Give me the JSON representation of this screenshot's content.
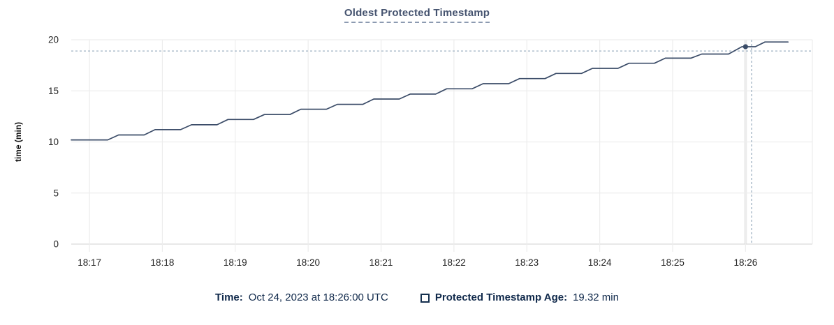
{
  "title": "Oldest Protected Timestamp",
  "legend": {
    "time_label": "Time:",
    "time_value": "Oct 24, 2023 at 18:26:00 UTC",
    "series_label": "Protected Timestamp Age:",
    "series_value": "19.32 min",
    "series_swatch_icon": "checkbox-square-icon"
  },
  "colors": {
    "title": "#45536f",
    "title_underline": "#8c9ab1",
    "line": "#3b4c68",
    "dot": "#3b4c68",
    "crosshair": "#9fb2c3",
    "grid": "#ededed",
    "axis_baseline": "#d9d9d9",
    "hover_guideline": "#ebebeb",
    "tick_text": "#242424",
    "axis_title_text": "#111111",
    "legend_text": "#10294b"
  },
  "chart_data": {
    "type": "line",
    "title": "Oldest Protected Timestamp",
    "xlabel": "",
    "ylabel": "time (min)",
    "ylim": [
      0,
      20
    ],
    "yticks": [
      0,
      5,
      10,
      15,
      20
    ],
    "xticks": [
      "18:17",
      "18:18",
      "18:19",
      "18:20",
      "18:21",
      "18:22",
      "18:23",
      "18:24",
      "18:25",
      "18:26"
    ],
    "x_range": [
      "18:16:45",
      "18:26:55"
    ],
    "grid": true,
    "legend_position": "bottom",
    "series": [
      {
        "name": "Protected Timestamp Age",
        "unit": "min",
        "points": [
          [
            "18:16:45",
            10.2
          ],
          [
            "18:17:15",
            10.2
          ],
          [
            "18:17:24",
            10.68
          ],
          [
            "18:17:45",
            10.68
          ],
          [
            "18:17:54",
            11.2
          ],
          [
            "18:18:15",
            11.2
          ],
          [
            "18:18:24",
            11.68
          ],
          [
            "18:18:45",
            11.68
          ],
          [
            "18:18:54",
            12.2
          ],
          [
            "18:19:15",
            12.2
          ],
          [
            "18:19:24",
            12.68
          ],
          [
            "18:19:45",
            12.68
          ],
          [
            "18:19:54",
            13.2
          ],
          [
            "18:20:15",
            13.2
          ],
          [
            "18:20:24",
            13.68
          ],
          [
            "18:20:45",
            13.68
          ],
          [
            "18:20:54",
            14.2
          ],
          [
            "18:21:15",
            14.2
          ],
          [
            "18:21:24",
            14.68
          ],
          [
            "18:21:45",
            14.68
          ],
          [
            "18:21:54",
            15.2
          ],
          [
            "18:22:15",
            15.2
          ],
          [
            "18:22:24",
            15.7
          ],
          [
            "18:22:45",
            15.7
          ],
          [
            "18:22:54",
            16.2
          ],
          [
            "18:23:15",
            16.2
          ],
          [
            "18:23:24",
            16.7
          ],
          [
            "18:23:45",
            16.7
          ],
          [
            "18:23:54",
            17.2
          ],
          [
            "18:24:15",
            17.2
          ],
          [
            "18:24:24",
            17.7
          ],
          [
            "18:24:45",
            17.7
          ],
          [
            "18:24:54",
            18.2
          ],
          [
            "18:25:15",
            18.2
          ],
          [
            "18:25:24",
            18.6
          ],
          [
            "18:25:46",
            18.6
          ],
          [
            "18:25:57",
            19.32
          ],
          [
            "18:26:08",
            19.32
          ],
          [
            "18:26:16",
            19.78
          ],
          [
            "18:26:35",
            19.78
          ]
        ]
      }
    ],
    "hover": {
      "x": "18:26:00",
      "y": 19.32,
      "crosshair_x": "18:26:05",
      "crosshair_y": 18.9
    }
  }
}
